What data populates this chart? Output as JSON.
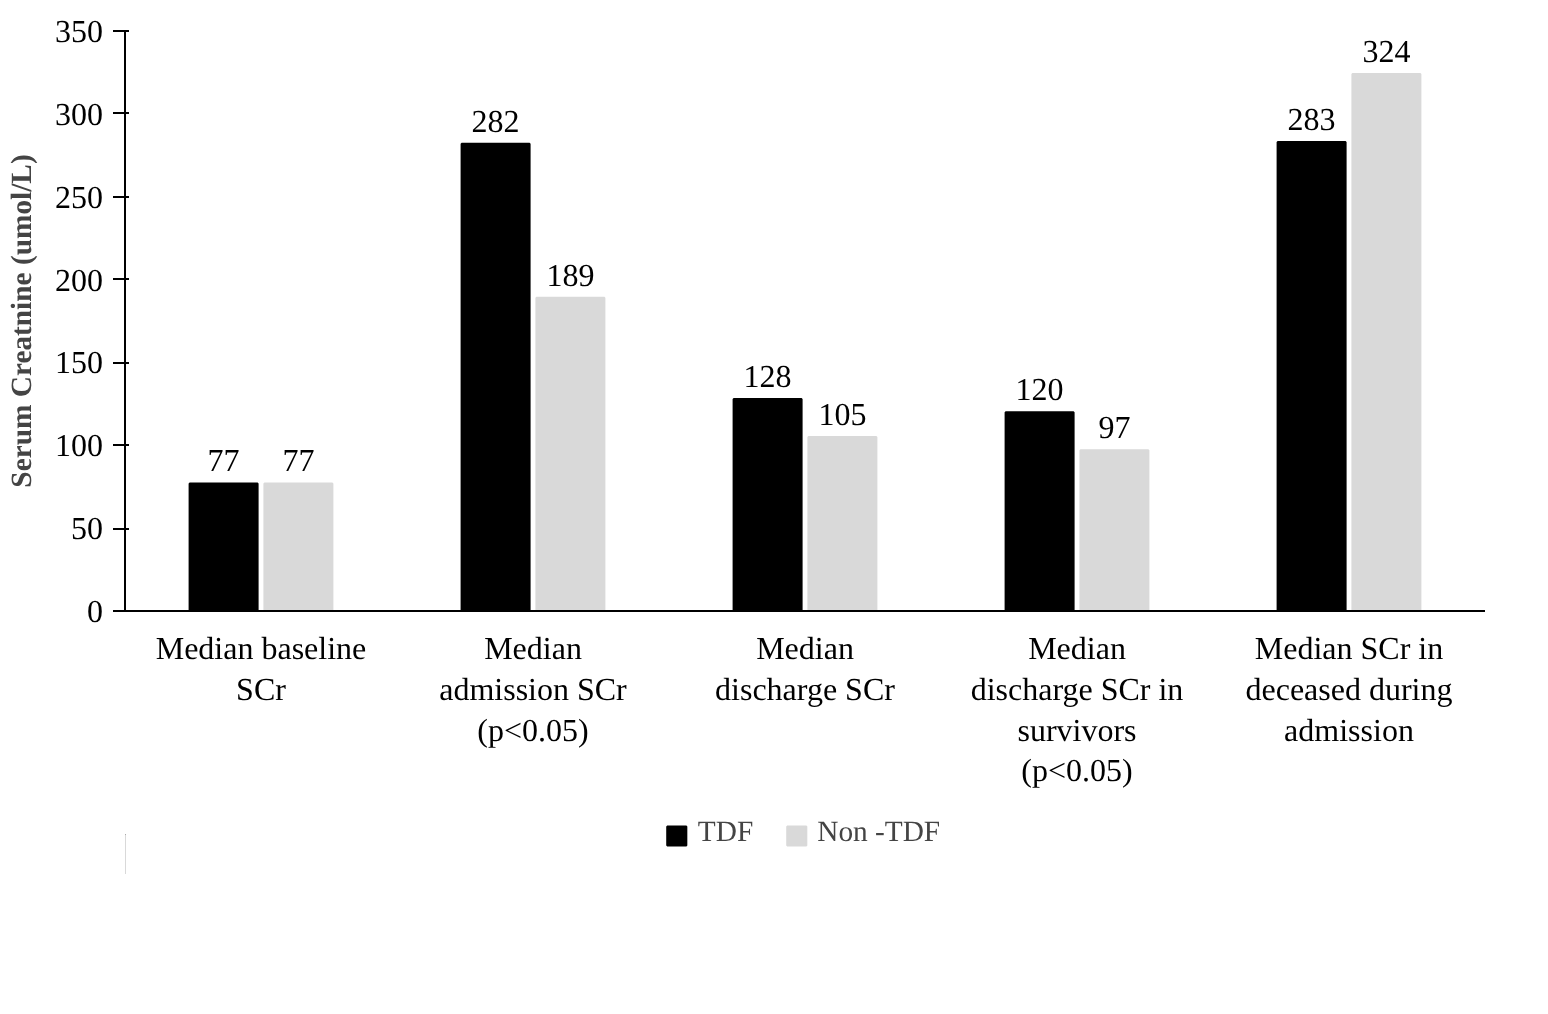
{
  "chart_data": {
    "type": "bar",
    "ylabel": "Serum Creatnine (umol/L)",
    "categories": [
      "Median baseline\nSCr",
      "Median\nadmission SCr\n(p<0.05)",
      "Median\ndischarge SCr",
      "Median\ndischarge SCr in\nsurvivors\n(p<0.05)",
      "Median SCr in\ndeceased during\nadmission"
    ],
    "series": [
      {
        "name": "TDF",
        "color": "#000000",
        "values": [
          77,
          282,
          128,
          120,
          283
        ]
      },
      {
        "name": "Non -TDF",
        "color": "#d9d9d9",
        "values": [
          77,
          189,
          105,
          97,
          324
        ]
      }
    ],
    "ylim": [
      0,
      350
    ],
    "yticks": [
      0,
      50,
      100,
      150,
      200,
      250,
      300,
      350
    ],
    "data_labels": true,
    "grid": false,
    "legend": "bottom"
  }
}
